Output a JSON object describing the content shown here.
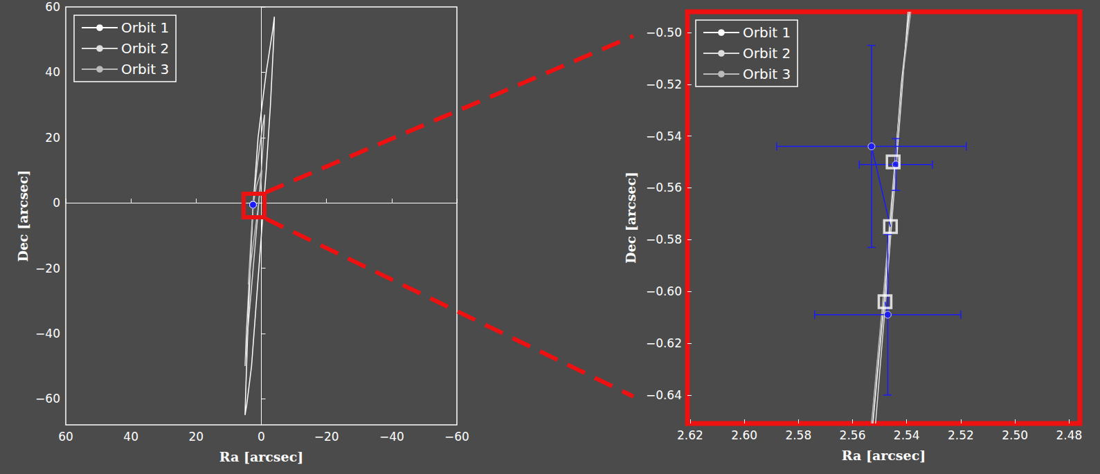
{
  "chart_data": [
    {
      "type": "line",
      "xlabel": "Ra [arcsec]",
      "ylabel": "Dec [arcsec]",
      "xlim": [
        60,
        -60
      ],
      "ylim": [
        -68,
        60
      ],
      "xticks": [
        60,
        40,
        20,
        0,
        {
          "value": -20,
          "label": "−20"
        },
        {
          "value": -40,
          "label": "−40"
        },
        {
          "value": -60,
          "label": "−60"
        }
      ],
      "yticks": [
        {
          "value": -60,
          "label": "−60"
        },
        {
          "value": -40,
          "label": "−40"
        },
        {
          "value": -20,
          "label": "−20"
        },
        0,
        20,
        40,
        60
      ],
      "legend": "upper left",
      "series": [
        {
          "name": "Orbit 1",
          "color": "#ffffff",
          "x": [
            2.5,
            1.0,
            -1.5,
            -3.5,
            -4.0,
            -3.8,
            -2.8,
            -1.5,
            0.0,
            1.5,
            3.0,
            4.5,
            5.0,
            4.8,
            4.0,
            3.2,
            2.5
          ],
          "y": [
            -0.55,
            20,
            40,
            53,
            57,
            50,
            30,
            10,
            -10,
            -30,
            -50,
            -62,
            -65,
            -58,
            -35,
            -15,
            -0.55
          ]
        },
        {
          "name": "Orbit 2",
          "color": "#dddddd",
          "x": [
            2.5,
            1.2,
            -0.3,
            -1.0,
            -0.8,
            0.0,
            1.2,
            2.5,
            3.8,
            4.8,
            5.0,
            4.6,
            3.8,
            3.0,
            2.5
          ],
          "y": [
            -0.55,
            12,
            23,
            27,
            22,
            10,
            -5,
            -20,
            -35,
            -47,
            -50,
            -40,
            -25,
            -10,
            -0.55
          ]
        },
        {
          "name": "Orbit 3",
          "color": "#bbbbbb",
          "x": [
            2.5,
            1.5,
            0.3,
            -0.2,
            0.2,
            1.2,
            2.4,
            3.6,
            4.0,
            3.6,
            3.0,
            2.5
          ],
          "y": [
            -0.55,
            5,
            9,
            10,
            5,
            -3,
            -12,
            -22,
            -25,
            -18,
            -8,
            -0.55
          ]
        }
      ],
      "observations": {
        "color": "#1a1aff",
        "x": [
          2.553,
          2.544,
          2.547
        ],
        "y": [
          -0.544,
          -0.551,
          -0.609
        ],
        "xerr": [
          0.035,
          0.0135,
          0.027
        ],
        "yerr": [
          0.039,
          0.01,
          0.031
        ]
      }
    },
    {
      "type": "line",
      "xlabel": "Ra [arcsec]",
      "ylabel": "Dec [arcsec]",
      "xlim": [
        2.621,
        2.476
      ],
      "ylim": [
        -0.651,
        -0.492
      ],
      "xticks": [
        2.62,
        {
          "value": 2.6,
          "label": "2.60"
        },
        2.58,
        2.56,
        2.54,
        2.52,
        {
          "value": 2.5,
          "label": "2.50"
        },
        2.48
      ],
      "yticks": [
        {
          "value": -0.64,
          "label": "−0.64"
        },
        {
          "value": -0.62,
          "label": "−0.62"
        },
        {
          "value": -0.6,
          "label": "−0.60"
        },
        {
          "value": -0.58,
          "label": "−0.58"
        },
        {
          "value": -0.56,
          "label": "−0.56"
        },
        {
          "value": -0.54,
          "label": "−0.54"
        },
        {
          "value": -0.52,
          "label": "−0.52"
        },
        {
          "value": -0.5,
          "label": "−0.50"
        }
      ],
      "legend": "upper left",
      "series": [
        {
          "name": "Orbit 1",
          "color": "#ffffff",
          "x": [
            2.5525,
            2.548,
            2.545,
            2.542,
            2.539
          ],
          "y": [
            -0.651,
            -0.6,
            -0.56,
            -0.52,
            -0.492
          ]
        },
        {
          "name": "Orbit 2",
          "color": "#dddddd",
          "x": [
            2.5515,
            2.5475,
            2.5445,
            2.5415,
            2.5395
          ],
          "y": [
            -0.651,
            -0.6,
            -0.56,
            -0.52,
            -0.492
          ]
        },
        {
          "name": "Orbit 3",
          "color": "#bbbbbb",
          "x": [
            2.553,
            2.5485,
            2.5452,
            2.5418,
            2.5385
          ],
          "y": [
            -0.651,
            -0.6,
            -0.56,
            -0.52,
            -0.492
          ]
        }
      ],
      "observations": {
        "color": "#1a1aff",
        "x": [
          2.553,
          2.544,
          2.547
        ],
        "y": [
          -0.544,
          -0.551,
          -0.609
        ],
        "xerr": [
          0.035,
          0.0135,
          0.027
        ],
        "yerr": [
          0.039,
          0.01,
          0.031
        ]
      },
      "model": {
        "marker": "square",
        "color": "#ffffff",
        "x": [
          2.546,
          2.545,
          2.548
        ],
        "y": [
          -0.575,
          -0.55,
          -0.604
        ]
      }
    }
  ]
}
